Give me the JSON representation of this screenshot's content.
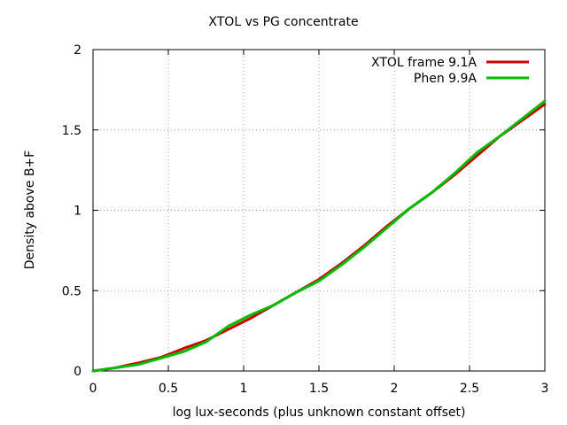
{
  "chart_data": {
    "type": "line",
    "title": "XTOL vs PG concentrate",
    "xlabel": "log lux-seconds (plus unknown constant offset)",
    "ylabel": "Density above B+F",
    "xlim": [
      0,
      3
    ],
    "ylim": [
      0,
      2
    ],
    "x_ticks": [
      "0",
      "0.5",
      "1",
      "1.5",
      "2",
      "2.5",
      "3"
    ],
    "y_ticks": [
      "0",
      "0.5",
      "1",
      "1.5",
      "2"
    ],
    "grid": true,
    "legend_position": "top-right",
    "series": [
      {
        "name": "XTOL frame 9.1A",
        "color": "#cc0000",
        "x": [
          0,
          0.15,
          0.3,
          0.45,
          0.6,
          0.75,
          0.9,
          1.05,
          1.2,
          1.35,
          1.5,
          1.65,
          1.8,
          1.95,
          2.1,
          2.25,
          2.4,
          2.55,
          2.7,
          2.85,
          3.0
        ],
        "y": [
          0,
          0.02,
          0.05,
          0.085,
          0.14,
          0.19,
          0.26,
          0.33,
          0.41,
          0.49,
          0.57,
          0.67,
          0.78,
          0.9,
          1.01,
          1.11,
          1.22,
          1.34,
          1.46,
          1.56,
          1.66
        ]
      },
      {
        "name": "Phen 9.9A",
        "color": "#00bb00",
        "x": [
          0,
          0.15,
          0.3,
          0.45,
          0.6,
          0.75,
          0.9,
          1.05,
          1.2,
          1.35,
          1.5,
          1.65,
          1.8,
          1.95,
          2.1,
          2.25,
          2.4,
          2.55,
          2.7,
          2.85,
          3.0
        ],
        "y": [
          0,
          0.02,
          0.04,
          0.08,
          0.12,
          0.18,
          0.28,
          0.35,
          0.41,
          0.49,
          0.56,
          0.66,
          0.77,
          0.89,
          1.01,
          1.11,
          1.23,
          1.36,
          1.46,
          1.57,
          1.68
        ]
      }
    ]
  }
}
